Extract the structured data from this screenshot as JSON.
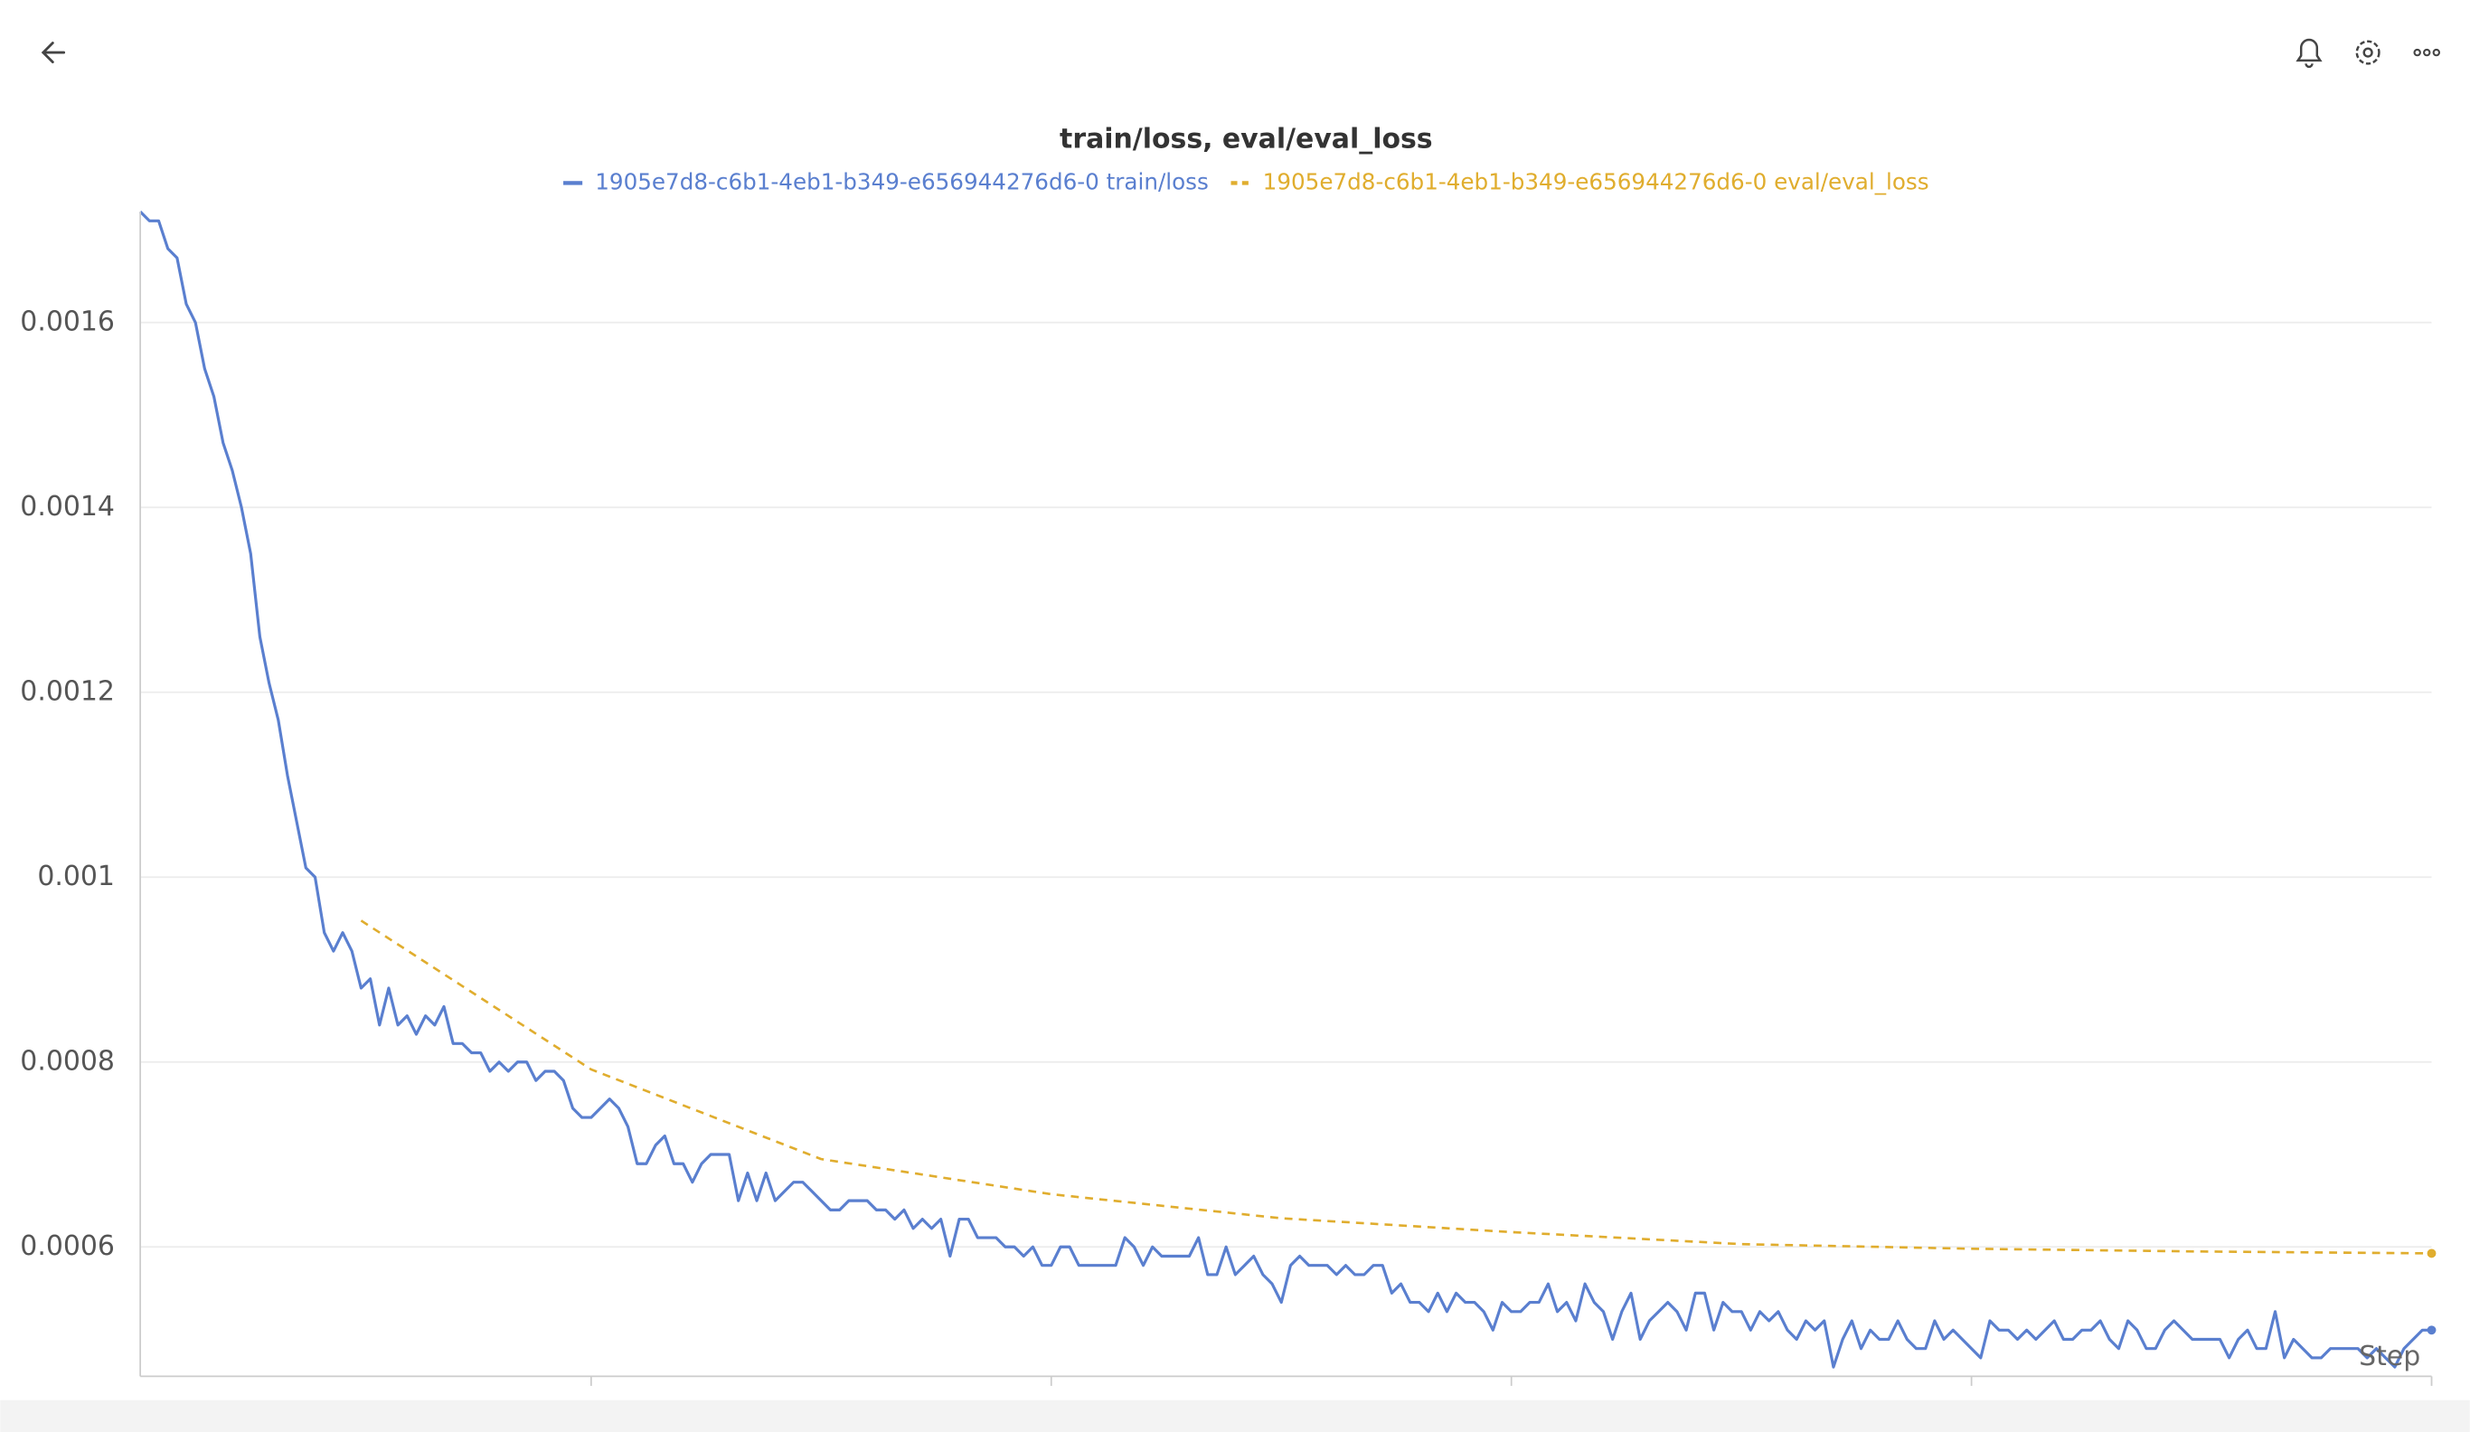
{
  "chart_data": {
    "type": "line",
    "title": "train/loss, eval/eval_loss",
    "x_label": "Step",
    "xlim": [
      1,
      250
    ],
    "xticks": [
      50,
      100,
      150,
      200,
      250
    ],
    "ylim": [
      0.00046,
      0.00172
    ],
    "yticks": [
      0.0006,
      0.0008,
      0.001,
      0.0012,
      0.0014,
      0.0016
    ],
    "grid": true,
    "series": [
      {
        "name": "1905e7d8-c6b1-4eb1-b349-e656944276d6-0 train/loss",
        "color": "#5a7fcf",
        "dash": false,
        "x": [
          1,
          2,
          3,
          4,
          5,
          6,
          7,
          8,
          9,
          10,
          11,
          12,
          13,
          14,
          15,
          16,
          17,
          18,
          19,
          20,
          21,
          22,
          23,
          24,
          25,
          26,
          27,
          28,
          29,
          30,
          31,
          32,
          33,
          34,
          35,
          36,
          37,
          38,
          39,
          40,
          41,
          42,
          43,
          44,
          45,
          46,
          47,
          48,
          49,
          50,
          51,
          52,
          53,
          54,
          55,
          56,
          57,
          58,
          59,
          60,
          61,
          62,
          63,
          64,
          65,
          66,
          67,
          68,
          69,
          70,
          71,
          72,
          73,
          74,
          75,
          76,
          77,
          78,
          79,
          80,
          81,
          82,
          83,
          84,
          85,
          86,
          87,
          88,
          89,
          90,
          91,
          92,
          93,
          94,
          95,
          96,
          97,
          98,
          99,
          100,
          101,
          102,
          103,
          104,
          105,
          106,
          107,
          108,
          109,
          110,
          111,
          112,
          113,
          114,
          115,
          116,
          117,
          118,
          119,
          120,
          121,
          122,
          123,
          124,
          125,
          126,
          127,
          128,
          129,
          130,
          131,
          132,
          133,
          134,
          135,
          136,
          137,
          138,
          139,
          140,
          141,
          142,
          143,
          144,
          145,
          146,
          147,
          148,
          149,
          150,
          151,
          152,
          153,
          154,
          155,
          156,
          157,
          158,
          159,
          160,
          161,
          162,
          163,
          164,
          165,
          166,
          167,
          168,
          169,
          170,
          171,
          172,
          173,
          174,
          175,
          176,
          177,
          178,
          179,
          180,
          181,
          182,
          183,
          184,
          185,
          186,
          187,
          188,
          189,
          190,
          191,
          192,
          193,
          194,
          195,
          196,
          197,
          198,
          199,
          200,
          201,
          202,
          203,
          204,
          205,
          206,
          207,
          208,
          209,
          210,
          211,
          212,
          213,
          214,
          215,
          216,
          217,
          218,
          219,
          220,
          221,
          222,
          223,
          224,
          225,
          226,
          227,
          228,
          229,
          230,
          231,
          232,
          233,
          234,
          235,
          236,
          237,
          238,
          239,
          240,
          241,
          242,
          243,
          244,
          245,
          246,
          247,
          248,
          249,
          250
        ],
        "values": [
          0.00172,
          0.00171,
          0.00171,
          0.00168,
          0.00167,
          0.00162,
          0.0016,
          0.00155,
          0.00152,
          0.00147,
          0.00144,
          0.0014,
          0.00135,
          0.00126,
          0.00121,
          0.00117,
          0.00111,
          0.00106,
          0.00101,
          0.001,
          0.00094,
          0.00092,
          0.00094,
          0.00092,
          0.00088,
          0.00089,
          0.00084,
          0.00088,
          0.00084,
          0.00085,
          0.00083,
          0.00085,
          0.00084,
          0.00086,
          0.00082,
          0.00082,
          0.00081,
          0.00081,
          0.00079,
          0.0008,
          0.00079,
          0.0008,
          0.0008,
          0.00078,
          0.00079,
          0.00079,
          0.00078,
          0.00075,
          0.00074,
          0.00074,
          0.00075,
          0.00076,
          0.00075,
          0.00073,
          0.00069,
          0.00069,
          0.00071,
          0.00072,
          0.00069,
          0.00069,
          0.00067,
          0.00069,
          0.0007,
          0.0007,
          0.0007,
          0.00065,
          0.00068,
          0.00065,
          0.00068,
          0.00065,
          0.00066,
          0.00067,
          0.00067,
          0.00066,
          0.00065,
          0.00064,
          0.00064,
          0.00065,
          0.00065,
          0.00065,
          0.00064,
          0.00064,
          0.00063,
          0.00064,
          0.00062,
          0.00063,
          0.00062,
          0.00063,
          0.00059,
          0.00063,
          0.00063,
          0.00061,
          0.00061,
          0.00061,
          0.0006,
          0.0006,
          0.00059,
          0.0006,
          0.00058,
          0.00058,
          0.0006,
          0.0006,
          0.00058,
          0.00058,
          0.00058,
          0.00058,
          0.00058,
          0.00061,
          0.0006,
          0.00058,
          0.0006,
          0.00059,
          0.00059,
          0.00059,
          0.00059,
          0.00061,
          0.00057,
          0.00057,
          0.0006,
          0.00057,
          0.00058,
          0.00059,
          0.00057,
          0.00056,
          0.00054,
          0.00058,
          0.00059,
          0.00058,
          0.00058,
          0.00058,
          0.00057,
          0.00058,
          0.00057,
          0.00057,
          0.00058,
          0.00058,
          0.00055,
          0.00056,
          0.00054,
          0.00054,
          0.00053,
          0.00055,
          0.00053,
          0.00055,
          0.00054,
          0.00054,
          0.00053,
          0.00051,
          0.00054,
          0.00053,
          0.00053,
          0.00054,
          0.00054,
          0.00056,
          0.00053,
          0.00054,
          0.00052,
          0.00056,
          0.00054,
          0.00053,
          0.0005,
          0.00053,
          0.00055,
          0.0005,
          0.00052,
          0.00053,
          0.00054,
          0.00053,
          0.00051,
          0.00055,
          0.00055,
          0.00051,
          0.00054,
          0.00053,
          0.00053,
          0.00051,
          0.00053,
          0.00052,
          0.00053,
          0.00051,
          0.0005,
          0.00052,
          0.00051,
          0.00052,
          0.00047,
          0.0005,
          0.00052,
          0.00049,
          0.00051,
          0.0005,
          0.0005,
          0.00052,
          0.0005,
          0.00049,
          0.00049,
          0.00052,
          0.0005,
          0.00051,
          0.0005,
          0.00049,
          0.00048,
          0.00052,
          0.00051,
          0.00051,
          0.0005,
          0.00051,
          0.0005,
          0.00051,
          0.00052,
          0.0005,
          0.0005,
          0.00051,
          0.00051,
          0.00052,
          0.0005,
          0.00049,
          0.00052,
          0.00051,
          0.00049,
          0.00049,
          0.00051,
          0.00052,
          0.00051,
          0.0005,
          0.0005,
          0.0005,
          0.0005,
          0.00048,
          0.0005,
          0.00051,
          0.00049,
          0.00049,
          0.00053,
          0.00048,
          0.0005,
          0.00049,
          0.00048,
          0.00048,
          0.00049,
          0.00049,
          0.00049,
          0.00049,
          0.00048,
          0.00049,
          0.00048,
          0.00047,
          0.00049,
          0.0005,
          0.00051,
          0.00051
        ]
      },
      {
        "name": "1905e7d8-c6b1-4eb1-b349-e656944276d6-0 eval/eval_loss",
        "color": "#e0ad2e",
        "dash": true,
        "x": [
          25,
          50,
          75,
          100,
          125,
          150,
          175,
          200,
          225,
          250
        ],
        "values": [
          0.000953,
          0.000792,
          0.000695,
          0.000657,
          0.000631,
          0.000616,
          0.000603,
          0.000598,
          0.000595,
          0.000593
        ]
      }
    ]
  }
}
